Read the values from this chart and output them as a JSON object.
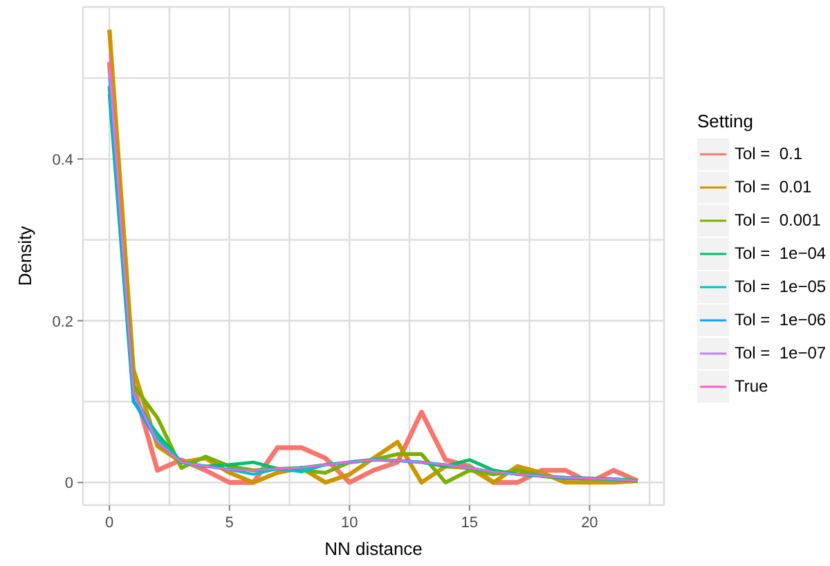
{
  "chart_data": {
    "type": "line",
    "xlabel": "NN distance",
    "ylabel": "Density",
    "legend_title": "Setting",
    "legend": "right",
    "grid": true,
    "x": [
      0,
      1,
      2,
      3,
      4,
      5,
      6,
      7,
      8,
      9,
      10,
      11,
      12,
      13,
      14,
      15,
      16,
      17,
      18,
      19,
      20,
      21,
      22
    ],
    "xlim": [
      -1.1,
      23.1
    ],
    "xticks": [
      0,
      {
        "value": 2.5,
        "label": null
      },
      5,
      {
        "value": 7.5,
        "label": null
      },
      10,
      {
        "value": 12.5,
        "label": null
      },
      15,
      {
        "value": 17.5,
        "label": null
      },
      20,
      {
        "value": 22.5,
        "label": null
      }
    ],
    "ylim": [
      -0.028,
      0.588
    ],
    "yticks": [
      0,
      {
        "value": 0.1,
        "label": null
      },
      0.2,
      {
        "value": 0.3,
        "label": null
      },
      0.4,
      {
        "value": 0.5,
        "label": null
      }
    ],
    "series": [
      {
        "name": "Tol =  0.1",
        "color": "#f8766d",
        "values": [
          0.52,
          0.12,
          0.015,
          0.028,
          0.015,
          0.0,
          0.0,
          0.043,
          0.043,
          0.03,
          0.0,
          0.015,
          0.025,
          0.087,
          0.028,
          0.02,
          0.0,
          0.0,
          0.015,
          0.015,
          0.0,
          0.015,
          0.002
        ]
      },
      {
        "name": "Tol =  0.01",
        "color": "#cd9600",
        "values": [
          0.56,
          0.14,
          0.045,
          0.025,
          0.03,
          0.012,
          0.0,
          0.012,
          0.018,
          0.0,
          0.01,
          0.03,
          0.05,
          0.0,
          0.02,
          0.018,
          0.0,
          0.02,
          0.012,
          0.0,
          0.0,
          0.0,
          0.002
        ]
      },
      {
        "name": "Tol =  0.001",
        "color": "#7cae00",
        "values": [
          0.49,
          0.12,
          0.08,
          0.018,
          0.032,
          0.02,
          0.015,
          0.017,
          0.015,
          0.012,
          0.025,
          0.028,
          0.035,
          0.035,
          0.0,
          0.015,
          0.01,
          0.015,
          0.008,
          0.005,
          0.005,
          0.004,
          0.002
        ]
      },
      {
        "name": "Tol =  1e−04",
        "color": "#00be67",
        "values": [
          0.48,
          0.1,
          0.06,
          0.025,
          0.02,
          0.022,
          0.025,
          0.017,
          0.018,
          0.022,
          0.025,
          0.028,
          0.027,
          0.025,
          0.02,
          0.028,
          0.015,
          0.01,
          0.008,
          0.006,
          0.005,
          0.004,
          0.002
        ]
      },
      {
        "name": "Tol =  1e−05",
        "color": "#00bfc4",
        "values": [
          0.49,
          0.11,
          0.055,
          0.025,
          0.02,
          0.016,
          0.01,
          0.017,
          0.013,
          0.022,
          0.025,
          0.028,
          0.027,
          0.025,
          0.022,
          0.018,
          0.013,
          0.01,
          0.008,
          0.006,
          0.005,
          0.004,
          0.002
        ]
      },
      {
        "name": "Tol =  1e−06",
        "color": "#00a9ff",
        "values": [
          0.5,
          0.1,
          0.05,
          0.025,
          0.02,
          0.016,
          0.015,
          0.017,
          0.018,
          0.022,
          0.025,
          0.028,
          0.027,
          0.025,
          0.022,
          0.018,
          0.013,
          0.01,
          0.008,
          0.006,
          0.005,
          0.004,
          0.002
        ]
      },
      {
        "name": "Tol =  1e−07",
        "color": "#c77cff",
        "values": [
          0.51,
          0.11,
          0.05,
          0.025,
          0.02,
          0.016,
          0.015,
          0.017,
          0.018,
          0.022,
          0.025,
          0.028,
          0.027,
          0.025,
          0.022,
          0.018,
          0.013,
          0.01,
          0.008,
          0.006,
          0.005,
          0.004,
          0.002
        ]
      },
      {
        "name": "True",
        "color": "#ff61cc",
        "values": [
          0.53,
          0.11,
          0.05,
          0.025,
          0.02,
          0.016,
          0.015,
          0.017,
          0.018,
          0.022,
          0.025,
          0.028,
          0.027,
          0.025,
          0.022,
          0.018,
          0.013,
          0.01,
          0.008,
          0.006,
          0.005,
          0.004,
          0.002
        ]
      }
    ]
  }
}
